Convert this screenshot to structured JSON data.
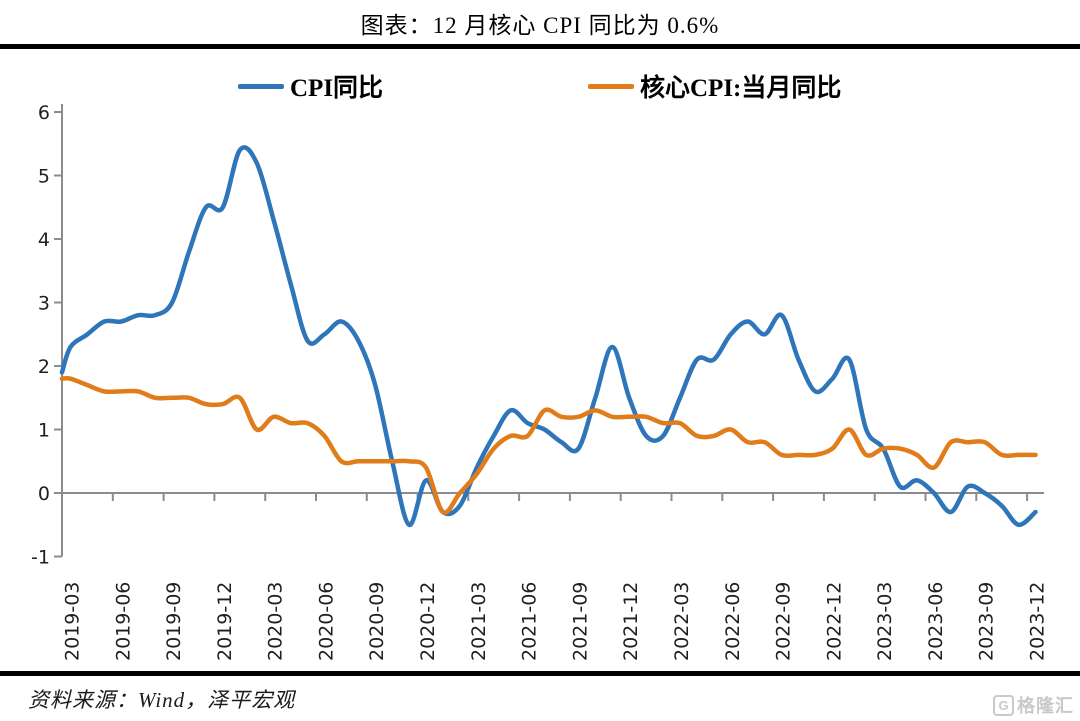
{
  "title": "图表：12 月核心 CPI 同比为 0.6%",
  "footer": {
    "source": "资料来源：Wind，泽平宏观",
    "logo_glyph": "G",
    "logo_text": "格隆汇"
  },
  "colors": {
    "cpi_line": "#2E75B9",
    "core_line": "#E07C1A",
    "axis": "#8C8C8C",
    "rule": "#000000",
    "tick_text": "#1f1f1f",
    "logo": "#c9c9c9"
  },
  "chart_data": {
    "type": "line",
    "title": "图表：12 月核心 CPI 同比为 0.6%",
    "smoothed": true,
    "legend_position": "top",
    "grid": "zero-line-only",
    "ylim": [
      -1,
      6
    ],
    "yticks": [
      6,
      5,
      4,
      3,
      2,
      1,
      0,
      -1
    ],
    "axis_color": "#8C8C8C",
    "x_tick_labels": [
      "2019-03",
      "2019-06",
      "2019-09",
      "2019-12",
      "2020-03",
      "2020-06",
      "2020-09",
      "2020-12",
      "2021-03",
      "2021-06",
      "2021-09",
      "2021-12",
      "2022-03",
      "2022-06",
      "2022-09",
      "2022-12",
      "2023-03",
      "2023-06",
      "2023-09",
      "2023-12"
    ],
    "x": [
      "2019-03",
      "2019-04",
      "2019-05",
      "2019-06",
      "2019-07",
      "2019-08",
      "2019-09",
      "2019-10",
      "2019-11",
      "2019-12",
      "2020-01",
      "2020-02",
      "2020-03",
      "2020-04",
      "2020-05",
      "2020-06",
      "2020-07",
      "2020-08",
      "2020-09",
      "2020-10",
      "2020-11",
      "2020-12",
      "2021-01",
      "2021-02",
      "2021-03",
      "2021-04",
      "2021-05",
      "2021-06",
      "2021-07",
      "2021-08",
      "2021-09",
      "2021-10",
      "2021-11",
      "2021-12",
      "2022-01",
      "2022-02",
      "2022-03",
      "2022-04",
      "2022-05",
      "2022-06",
      "2022-07",
      "2022-08",
      "2022-09",
      "2022-10",
      "2022-11",
      "2022-12",
      "2023-01",
      "2023-02",
      "2023-03",
      "2023-04",
      "2023-05",
      "2023-06",
      "2023-07",
      "2023-08",
      "2023-09",
      "2023-10",
      "2023-11",
      "2023-12"
    ],
    "series": [
      {
        "name": "CPI同比",
        "data_name": "cpi-line",
        "color": "#2E75B9",
        "edge_start_value": 1.9,
        "values": [
          2.3,
          2.5,
          2.7,
          2.7,
          2.8,
          2.8,
          3.0,
          3.8,
          4.5,
          4.5,
          5.4,
          5.2,
          4.3,
          3.3,
          2.4,
          2.5,
          2.7,
          2.4,
          1.7,
          0.5,
          -0.5,
          0.2,
          -0.3,
          -0.2,
          0.4,
          0.9,
          1.3,
          1.1,
          1.0,
          0.8,
          0.7,
          1.5,
          2.3,
          1.5,
          0.9,
          0.9,
          1.5,
          2.1,
          2.1,
          2.5,
          2.7,
          2.5,
          2.8,
          2.1,
          1.6,
          1.8,
          2.1,
          1.0,
          0.7,
          0.1,
          0.2,
          0.0,
          -0.3,
          0.1,
          0.0,
          -0.2,
          -0.5,
          -0.3
        ]
      },
      {
        "name": "核心CPI:当月同比",
        "data_name": "core-cpi-line",
        "color": "#E07C1A",
        "edge_start_value": 1.8,
        "values": [
          1.8,
          1.7,
          1.6,
          1.6,
          1.6,
          1.5,
          1.5,
          1.5,
          1.4,
          1.4,
          1.5,
          1.0,
          1.2,
          1.1,
          1.1,
          0.9,
          0.5,
          0.5,
          0.5,
          0.5,
          0.5,
          0.4,
          -0.3,
          0.0,
          0.3,
          0.7,
          0.9,
          0.9,
          1.3,
          1.2,
          1.2,
          1.3,
          1.2,
          1.2,
          1.2,
          1.1,
          1.1,
          0.9,
          0.9,
          1.0,
          0.8,
          0.8,
          0.6,
          0.6,
          0.6,
          0.7,
          1.0,
          0.6,
          0.7,
          0.7,
          0.6,
          0.4,
          0.8,
          0.8,
          0.8,
          0.6,
          0.6,
          0.6
        ]
      }
    ]
  }
}
